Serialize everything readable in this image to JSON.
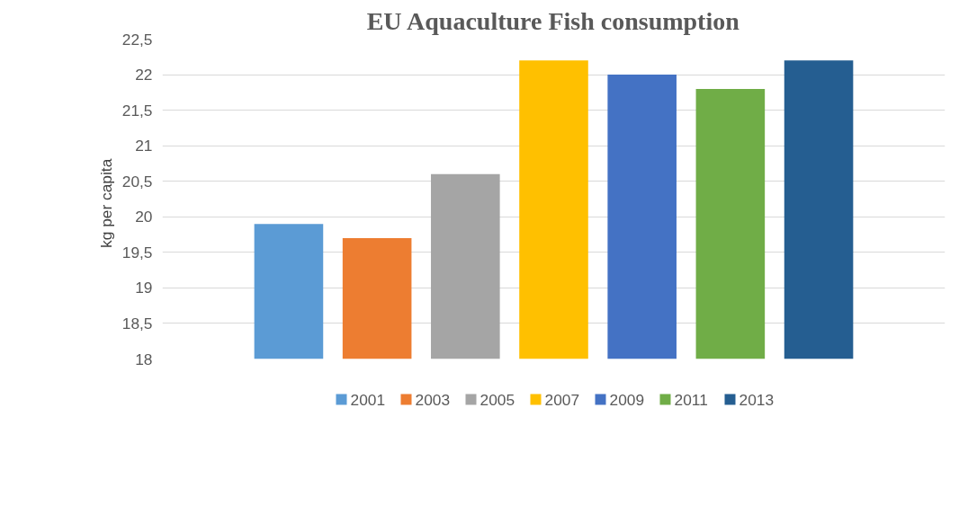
{
  "chart_data": {
    "type": "bar",
    "title": "EU Aquaculture Fish consumption",
    "ylabel": "kg  per  capita",
    "categories": [
      null
    ],
    "series": [
      {
        "name": "2001",
        "color": "#5b9bd5",
        "values": [
          19.9
        ]
      },
      {
        "name": "2003",
        "color": "#ed7d31",
        "values": [
          19.7
        ]
      },
      {
        "name": "2005",
        "color": "#a5a5a5",
        "values": [
          20.6
        ]
      },
      {
        "name": "2007",
        "color": "#ffc000",
        "values": [
          22.2
        ]
      },
      {
        "name": "2009",
        "color": "#4472c4",
        "values": [
          22.0
        ]
      },
      {
        "name": "2011",
        "color": "#70ad47",
        "values": [
          21.8
        ]
      },
      {
        "name": "2013",
        "color": "#255e91",
        "values": [
          22.2
        ]
      }
    ],
    "ylim": [
      18,
      22.5
    ],
    "yticks": [
      18,
      {
        "value": 18.5,
        "label": "18,5"
      },
      19,
      {
        "value": 19.5,
        "label": "19,5"
      },
      20,
      {
        "value": 20.5,
        "label": "20,5"
      },
      21,
      {
        "value": 21.5,
        "label": "21,5"
      },
      22,
      {
        "value": 22.5,
        "label": "22,5"
      }
    ],
    "grid": "y",
    "legend": "bottom",
    "tick_labels": "y"
  }
}
